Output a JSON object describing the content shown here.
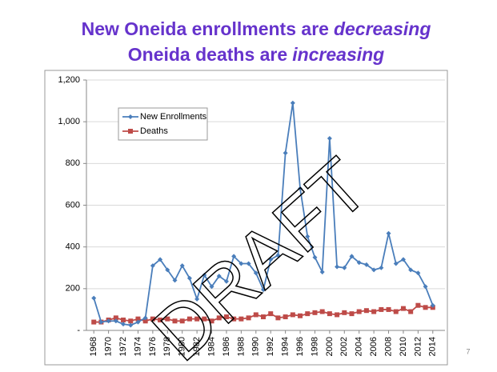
{
  "chart_data": {
    "type": "line",
    "title": [
      [
        "New Oneida enrollments are",
        "decreasing"
      ],
      [
        "Oneida deaths are",
        "increasing"
      ]
    ],
    "x": [
      1968,
      1969,
      1970,
      1971,
      1972,
      1973,
      1974,
      1975,
      1976,
      1977,
      1978,
      1979,
      1980,
      1981,
      1982,
      1983,
      1984,
      1985,
      1986,
      1987,
      1988,
      1989,
      1990,
      1991,
      1992,
      1993,
      1994,
      1995,
      1996,
      1997,
      1998,
      1999,
      2000,
      2001,
      2002,
      2003,
      2004,
      2005,
      2006,
      2007,
      2008,
      2009,
      2010,
      2011,
      2012,
      2013,
      2014
    ],
    "series": [
      {
        "name": "New Enrollments",
        "color": "#4a7ebb",
        "marker": "diamond",
        "values": [
          155,
          40,
          45,
          45,
          30,
          25,
          40,
          60,
          310,
          340,
          290,
          240,
          310,
          250,
          150,
          265,
          210,
          260,
          235,
          355,
          320,
          320,
          275,
          195,
          340,
          360,
          850,
          1090,
          680,
          450,
          350,
          280,
          920,
          305,
          300,
          355,
          325,
          315,
          290,
          300,
          465,
          320,
          340,
          290,
          275,
          210,
          120
        ]
      },
      {
        "name": "Deaths",
        "color": "#be4b48",
        "marker": "square",
        "values": [
          40,
          40,
          50,
          60,
          50,
          45,
          55,
          45,
          55,
          50,
          55,
          45,
          45,
          55,
          55,
          55,
          45,
          60,
          65,
          55,
          55,
          60,
          75,
          65,
          80,
          60,
          65,
          75,
          70,
          80,
          85,
          90,
          80,
          75,
          85,
          80,
          90,
          95,
          90,
          100,
          100,
          90,
          105,
          90,
          120,
          110,
          110
        ]
      }
    ],
    "xlim": [
      1967,
      2015
    ],
    "xticks": [
      1968,
      1970,
      1972,
      1974,
      1976,
      1978,
      1980,
      1982,
      1984,
      1986,
      1988,
      1990,
      1992,
      1994,
      1996,
      1998,
      2000,
      2002,
      2004,
      2006,
      2008,
      2010,
      2012,
      2014
    ],
    "ylim": [
      0,
      1200
    ],
    "yticks": [
      {
        "value": 0,
        "label": "-"
      },
      200,
      400,
      600,
      800,
      {
        "value": 1000,
        "label": "1,000"
      },
      {
        "value": 1200,
        "label": "1,200"
      }
    ],
    "grid": true,
    "legend": "upper-left",
    "watermark": "DRAFT",
    "page_number": "7"
  }
}
